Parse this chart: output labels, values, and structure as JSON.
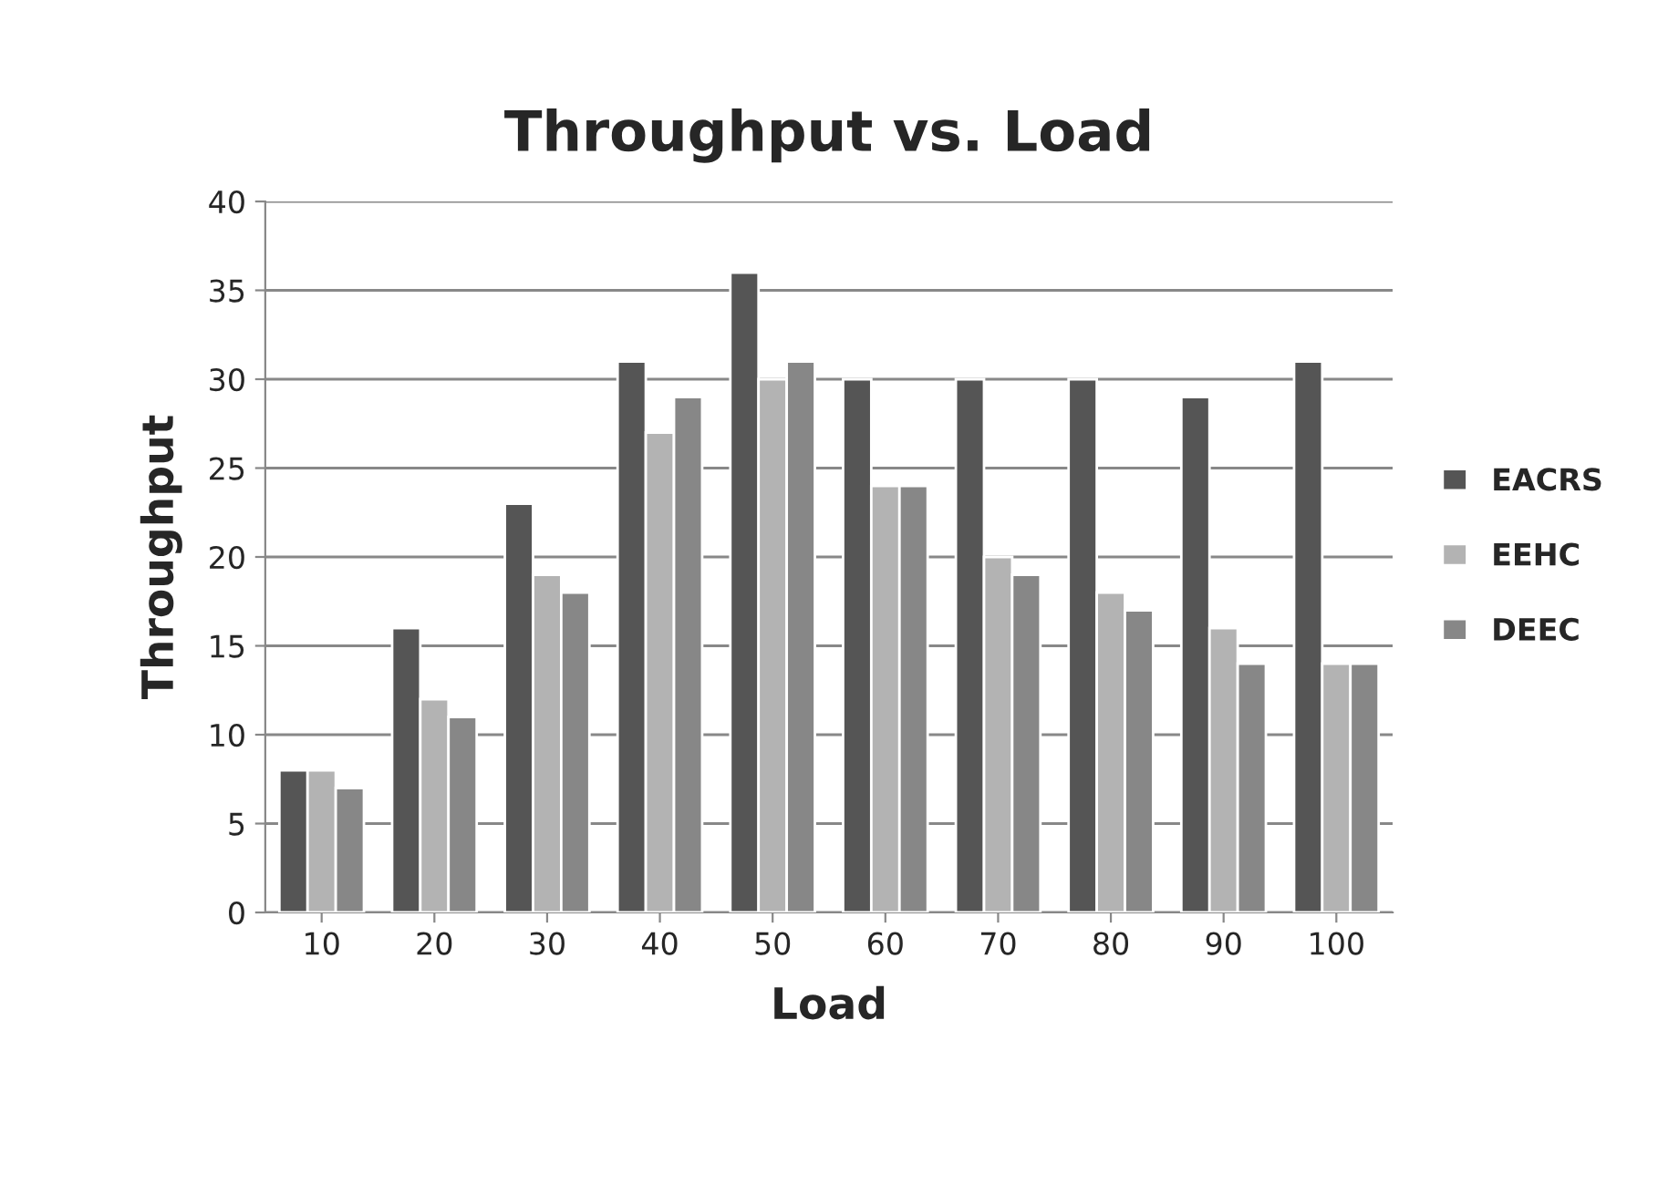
{
  "chart_data": {
    "type": "bar",
    "title": "Throughput vs. Load",
    "xlabel": "Load",
    "ylabel": "Throughput",
    "categories": [
      "10",
      "20",
      "30",
      "40",
      "50",
      "60",
      "70",
      "80",
      "90",
      "100"
    ],
    "series": [
      {
        "name": "EACRS",
        "color": "#555555",
        "values": [
          8,
          16,
          23,
          31,
          36,
          30,
          30,
          30,
          29,
          31
        ]
      },
      {
        "name": "EEHC",
        "color": "#b3b3b3",
        "values": [
          8,
          12,
          19,
          27,
          30,
          24,
          20,
          18,
          16,
          14
        ]
      },
      {
        "name": "DEEC",
        "color": "#878787",
        "values": [
          7,
          11,
          18,
          29,
          31,
          24,
          19,
          17,
          14,
          14
        ]
      }
    ],
    "ylim": [
      0,
      40
    ],
    "yticks": [
      0,
      5,
      10,
      15,
      20,
      25,
      30,
      35,
      40
    ],
    "grid": "y",
    "legend": "right"
  }
}
